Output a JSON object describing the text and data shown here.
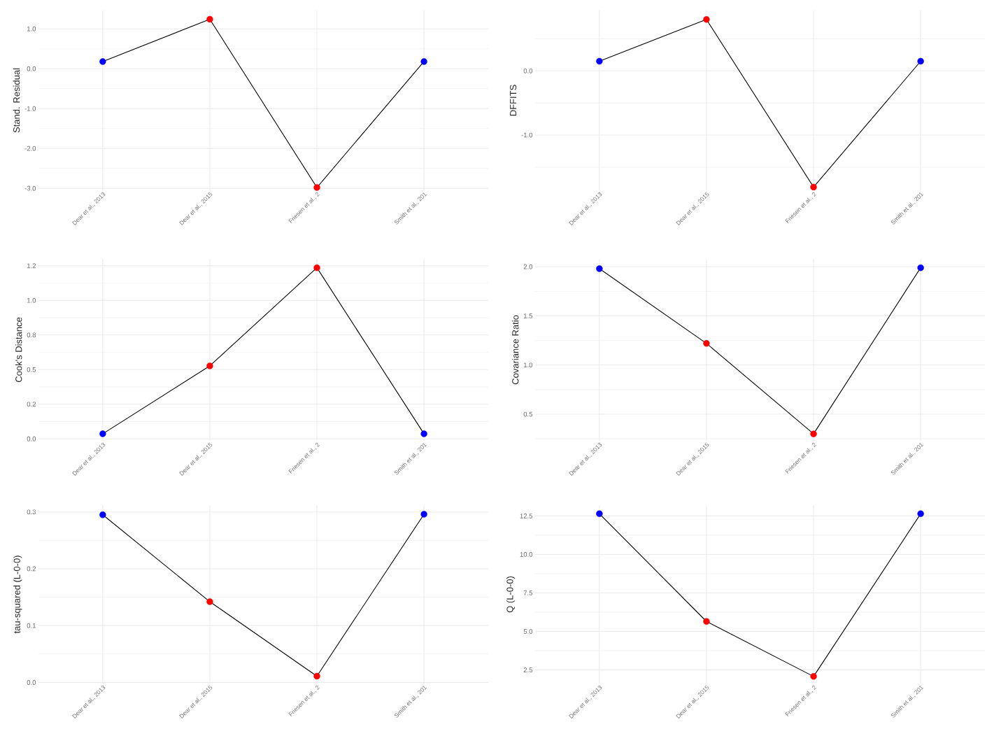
{
  "chart_data": [
    {
      "type": "line",
      "ylabel": "Stand. Residual",
      "categories": [
        "Dear et al., 2013",
        "Dear et al., 2015",
        "Friesen et al., 2",
        "Smith et al., 201"
      ],
      "series": [
        {
          "color": "#000000",
          "colors": [
            "#0000ff",
            "#ff0000",
            "#ff0000",
            "#0000ff"
          ],
          "values": [
            0.18,
            1.24,
            -2.98,
            0.18
          ]
        }
      ],
      "ylim": [
        -3.05,
        1.46
      ],
      "yticks": [
        {
          "value": -3,
          "label": "-3.0"
        },
        {
          "value": -2.5,
          "label": null
        },
        {
          "value": -2,
          "label": "-2.0"
        },
        {
          "value": -1.5,
          "label": null
        },
        {
          "value": -1,
          "label": "-1.0"
        },
        {
          "value": -0.5,
          "label": null
        },
        {
          "value": 0,
          "label": "0.0"
        },
        {
          "value": 0.5,
          "label": null
        },
        {
          "value": 1,
          "label": "1.0"
        }
      ],
      "grid": true,
      "marker": "circle"
    },
    {
      "type": "line",
      "ylabel": "DFFITS",
      "categories": [
        "Dear et al., 2013",
        "Dear et al., 2015",
        "Friesen et al., 2",
        "Smith et al., 201"
      ],
      "series": [
        {
          "color": "#000000",
          "colors": [
            "#0000ff",
            "#ff0000",
            "#ff0000",
            "#0000ff"
          ],
          "values": [
            0.15,
            0.8,
            -1.81,
            0.15
          ]
        }
      ],
      "ylim": [
        -1.86,
        0.94
      ],
      "yticks": [
        {
          "value": -1.5,
          "label": null
        },
        {
          "value": -1,
          "label": "-1.0"
        },
        {
          "value": -0.5,
          "label": null
        },
        {
          "value": 0,
          "label": "0.0"
        },
        {
          "value": 0.5,
          "label": null
        }
      ],
      "grid": true,
      "marker": "circle"
    },
    {
      "type": "line",
      "ylabel": "Cook's Distance",
      "categories": [
        "Dear et al., 2013",
        "Dear et al., 2015",
        "Friesen et al., 2",
        "Smith et al., 201"
      ],
      "series": [
        {
          "color": "#000000",
          "colors": [
            "#0000ff",
            "#ff0000",
            "#ff0000",
            "#0000ff"
          ],
          "values": [
            0.036,
            0.527,
            1.236,
            0.036
          ]
        }
      ],
      "ylim": [
        -0.014,
        1.3
      ],
      "yticks": [
        {
          "value": 0,
          "label": "0.0"
        },
        {
          "value": 0.125,
          "label": null
        },
        {
          "value": 0.25,
          "label": "0.2"
        },
        {
          "value": 0.375,
          "label": null
        },
        {
          "value": 0.5,
          "label": "0.5"
        },
        {
          "value": 0.625,
          "label": null
        },
        {
          "value": 0.75,
          "label": "0.8"
        },
        {
          "value": 0.875,
          "label": null
        },
        {
          "value": 1,
          "label": "1.0"
        },
        {
          "value": 1.125,
          "label": null
        },
        {
          "value": 1.25,
          "label": "1.2"
        }
      ],
      "grid": true,
      "marker": "circle"
    },
    {
      "type": "line",
      "ylabel": "Covariance Ratio",
      "categories": [
        "Dear et al., 2013",
        "Dear et al., 2015",
        "Friesen et al., 2",
        "Smith et al., 201"
      ],
      "series": [
        {
          "color": "#000000",
          "colors": [
            "#0000ff",
            "#ff0000",
            "#ff0000",
            "#0000ff"
          ],
          "values": [
            1.98,
            1.22,
            0.3,
            1.99
          ]
        }
      ],
      "ylim": [
        0.23,
        2.08
      ],
      "yticks": [
        {
          "value": 0.25,
          "label": null
        },
        {
          "value": 0.5,
          "label": "0.5"
        },
        {
          "value": 0.75,
          "label": null
        },
        {
          "value": 1,
          "label": "1.0"
        },
        {
          "value": 1.25,
          "label": null
        },
        {
          "value": 1.5,
          "label": "1.5"
        },
        {
          "value": 1.75,
          "label": null
        },
        {
          "value": 2,
          "label": "2.0"
        }
      ],
      "grid": true,
      "marker": "circle"
    },
    {
      "type": "line",
      "ylabel": "tau-squared (L-0-0)",
      "categories": [
        "Dear et al., 2013",
        "Dear et al., 2015",
        "Friesen et al., 2",
        "Smith et al., 201"
      ],
      "series": [
        {
          "color": "#000000",
          "colors": [
            "#0000ff",
            "#ff0000",
            "#ff0000",
            "#0000ff"
          ],
          "values": [
            0.295,
            0.142,
            0.011,
            0.296
          ]
        }
      ],
      "ylim": [
        -0.002,
        0.312
      ],
      "yticks": [
        {
          "value": 0,
          "label": "0.0"
        },
        {
          "value": 0.05,
          "label": null
        },
        {
          "value": 0.1,
          "label": "0.1"
        },
        {
          "value": 0.15,
          "label": null
        },
        {
          "value": 0.2,
          "label": "0.2"
        },
        {
          "value": 0.25,
          "label": null
        },
        {
          "value": 0.3,
          "label": "0.3"
        }
      ],
      "grid": true,
      "marker": "circle"
    },
    {
      "type": "line",
      "ylabel": "Q (L-0-0)",
      "categories": [
        "Dear et al., 2013",
        "Dear et al., 2015",
        "Friesen et al., 2",
        "Smith et al., 201"
      ],
      "series": [
        {
          "color": "#000000",
          "colors": [
            "#0000ff",
            "#ff0000",
            "#ff0000",
            "#0000ff"
          ],
          "values": [
            12.64,
            5.65,
            2.08,
            12.64
          ]
        }
      ],
      "ylim": [
        1.62,
        13.2
      ],
      "yticks": [
        2.5,
        {
          "value": 3.75,
          "label": null
        },
        {
          "value": 5,
          "label": "5.0"
        },
        {
          "value": 6.25,
          "label": null
        },
        7.5,
        {
          "value": 8.75,
          "label": null
        },
        {
          "value": 10,
          "label": "10.0"
        },
        {
          "value": 11.25,
          "label": null
        },
        12.5
      ],
      "grid": true,
      "marker": "circle"
    }
  ]
}
